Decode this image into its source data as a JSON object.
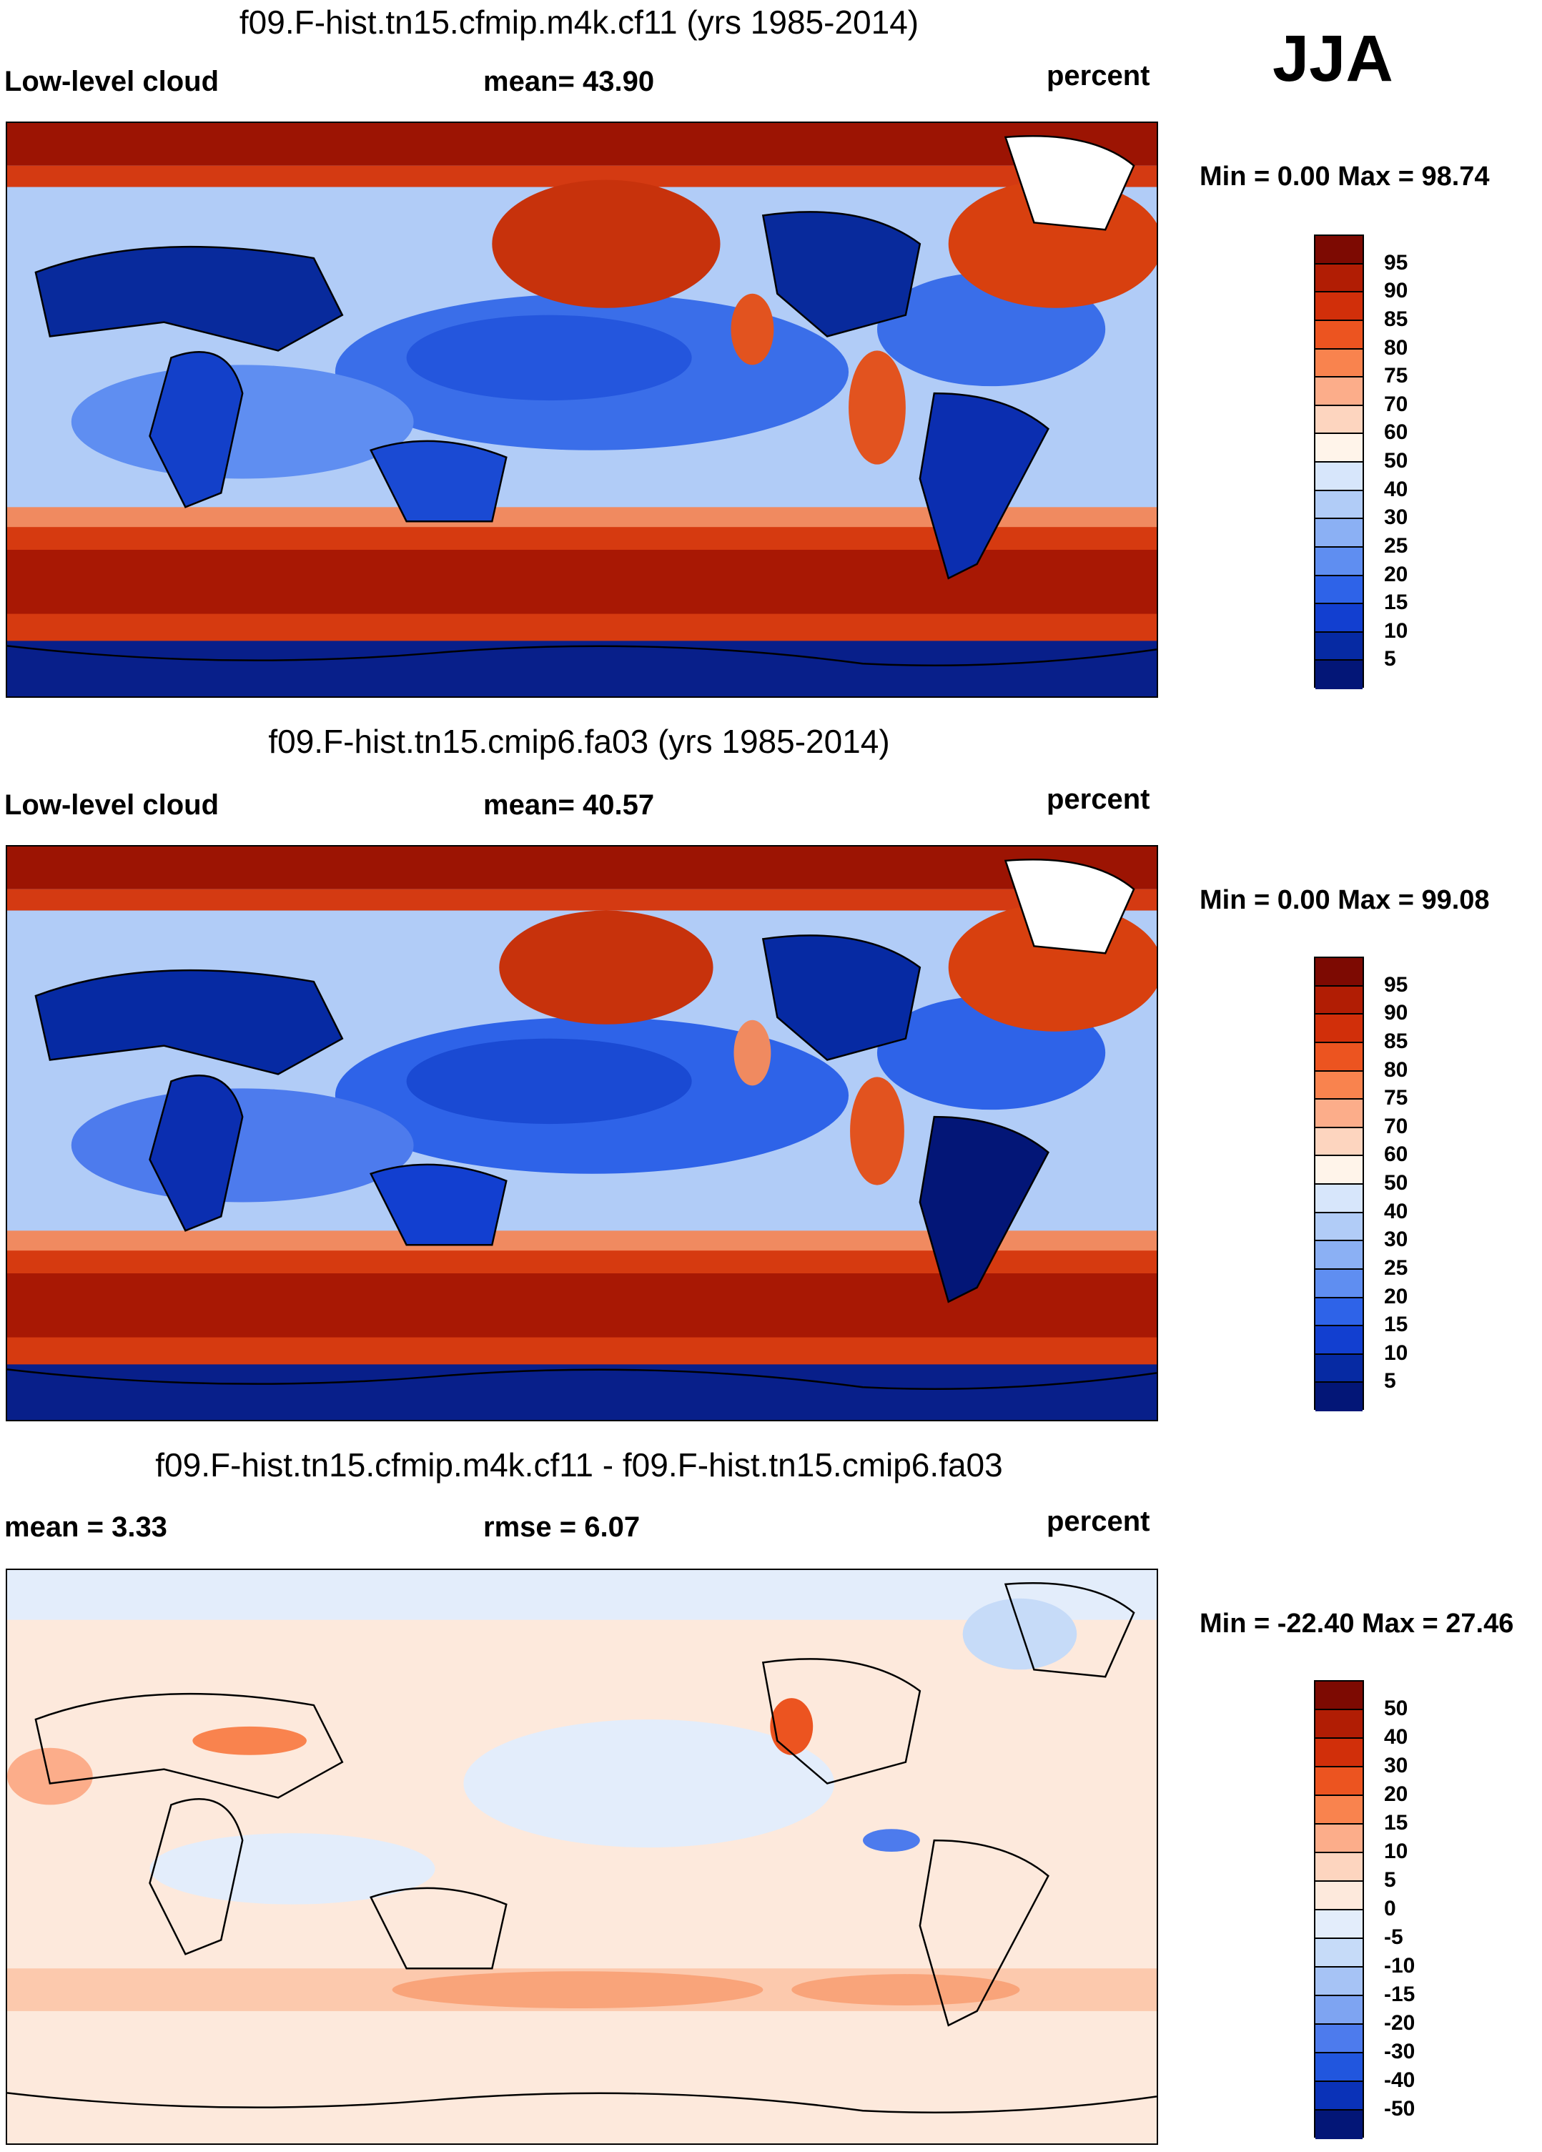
{
  "season": "JJA",
  "panels": [
    {
      "title": "f09.F-hist.tn15.cfmip.m4k.cf11 (yrs 1985-2014)",
      "left_label": "Low-level cloud",
      "center_label": "mean=  43.90",
      "right_label": "percent",
      "minmax": "Min =   0.00 Max =  98.74",
      "kind": "abs"
    },
    {
      "title": "f09.F-hist.tn15.cmip6.fa03 (yrs 1985-2014)",
      "left_label": "Low-level cloud",
      "center_label": "mean=  40.57",
      "right_label": "percent",
      "minmax": "Min =   0.00 Max =  99.08",
      "kind": "abs"
    },
    {
      "title": "f09.F-hist.tn15.cfmip.m4k.cf11 - f09.F-hist.tn15.cmip6.fa03",
      "left_label": "mean =   3.33",
      "center_label": "rmse =    6.07",
      "right_label": "percent",
      "minmax": "Min = -22.40 Max =  27.46",
      "kind": "diff"
    }
  ],
  "colorbar_abs": {
    "labels": [
      "95",
      "90",
      "85",
      "80",
      "75",
      "70",
      "60",
      "50",
      "40",
      "30",
      "25",
      "20",
      "15",
      "10",
      "5"
    ],
    "colors": [
      "#7d0a02",
      "#b11d04",
      "#d12f0a",
      "#ec5420",
      "#f9834e",
      "#fcad8a",
      "#fdd5bf",
      "#fff4ea",
      "#d7e6fb",
      "#b1ccf7",
      "#8bb0f4",
      "#5f8ef1",
      "#2e63e8",
      "#123fd0",
      "#062aa3",
      "#031677"
    ]
  },
  "colorbar_diff": {
    "labels": [
      "50",
      "40",
      "30",
      "20",
      "15",
      "10",
      "5",
      "0",
      "-5",
      "-10",
      "-15",
      "-20",
      "-30",
      "-40",
      "-50"
    ],
    "colors": [
      "#7d0a02",
      "#b11d04",
      "#d12f0a",
      "#ec5420",
      "#f9834e",
      "#fcad8a",
      "#fdd5bf",
      "#fde9dc",
      "#e3edfb",
      "#c6dbf8",
      "#a6c3f5",
      "#7ea4f2",
      "#4d7bed",
      "#2156de",
      "#0a32b8",
      "#031677"
    ]
  }
}
